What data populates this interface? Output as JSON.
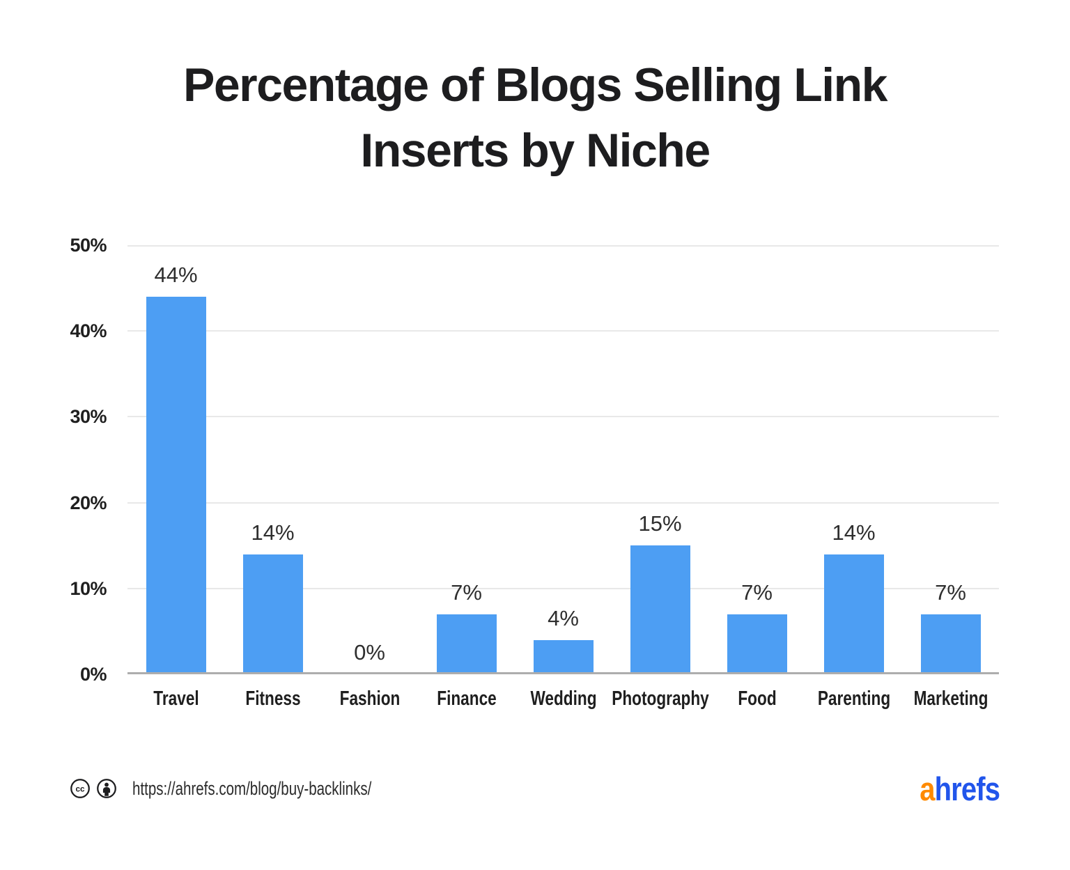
{
  "title_lines": [
    "Percentage of Blogs Selling Link",
    "Inserts by Niche"
  ],
  "chart_data": {
    "type": "bar",
    "title": "Percentage of Blogs Selling Link Inserts by Niche",
    "categories": [
      "Travel",
      "Fitness",
      "Fashion",
      "Finance",
      "Wedding",
      "Photography",
      "Food",
      "Parenting",
      "Marketing"
    ],
    "values": [
      44,
      14,
      0,
      7,
      4,
      15,
      7,
      14,
      7
    ],
    "value_labels": [
      "44%",
      "14%",
      "0%",
      "7%",
      "4%",
      "15%",
      "7%",
      "14%",
      "7%"
    ],
    "xlabel": "",
    "ylabel": "",
    "ylim": [
      0,
      50
    ],
    "yticks": [
      {
        "value": 0,
        "label": "0%"
      },
      {
        "value": 10,
        "label": "10%"
      },
      {
        "value": 20,
        "label": "20%"
      },
      {
        "value": 30,
        "label": "30%"
      },
      {
        "value": 40,
        "label": "40%"
      },
      {
        "value": 50,
        "label": "50%"
      }
    ],
    "grid": true,
    "legend_position": "none",
    "bar_color": "#4D9EF3"
  },
  "footer": {
    "license_icons": [
      "cc-icon",
      "attribution-icon"
    ],
    "source_url": "https://ahrefs.com/blog/buy-backlinks/",
    "logo_text": {
      "first_letter": "a",
      "rest": "hrefs"
    }
  },
  "colors": {
    "bar": "#4D9EF3",
    "title_text": "#1D1D1F",
    "axis_text": "#1F1F1F",
    "value_label_text": "#2E2E2E",
    "gridline": "#E8E8E8",
    "baseline": "#ADADAD",
    "logo_orange": "#FF8A00",
    "logo_blue": "#2155EB",
    "url_text": "#2B2B2B"
  }
}
